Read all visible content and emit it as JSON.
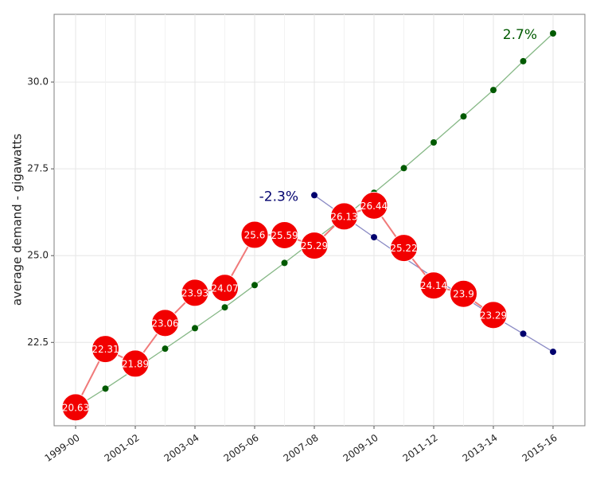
{
  "chart_data": {
    "type": "line",
    "y_label": "average demand - gigawatts",
    "categories": [
      "1999-00",
      null,
      "2001-02",
      null,
      "2003-04",
      null,
      "2005-06",
      null,
      "2007-08",
      null,
      "2009-10",
      null,
      "2011-12",
      null,
      "2013-14",
      null,
      "2015-16"
    ],
    "ylim": [
      20.1,
      31.95
    ],
    "yticks": [
      22.5,
      {
        "value": 25,
        "label": "25.0"
      },
      27.5,
      {
        "value": 30,
        "label": "30.0"
      }
    ],
    "grid": true,
    "series": [
      {
        "name": "2.7%",
        "color": "#005a00",
        "line_color": "#86b886",
        "values": [
          20.63,
          21.17,
          21.74,
          22.32,
          22.91,
          23.51,
          24.15,
          24.79,
          25.45,
          26.1,
          26.81,
          27.52,
          28.26,
          29.01,
          29.77,
          30.6,
          31.4
        ]
      },
      {
        "name": "-2.3%",
        "color": "#00006e",
        "line_color": "#8a8ac4",
        "values": [
          null,
          null,
          null,
          null,
          null,
          null,
          null,
          null,
          26.74,
          26.13,
          25.53,
          24.94,
          24.37,
          23.81,
          23.26,
          22.75,
          22.23
        ]
      },
      {
        "color": "#f20000",
        "line_color": "#f07a7a",
        "labelled": true,
        "values": [
          20.63,
          22.31,
          21.89,
          23.06,
          23.93,
          24.07,
          25.6,
          25.59,
          25.29,
          26.13,
          26.44,
          25.22,
          24.14,
          23.9,
          23.29,
          null,
          null
        ]
      }
    ]
  }
}
